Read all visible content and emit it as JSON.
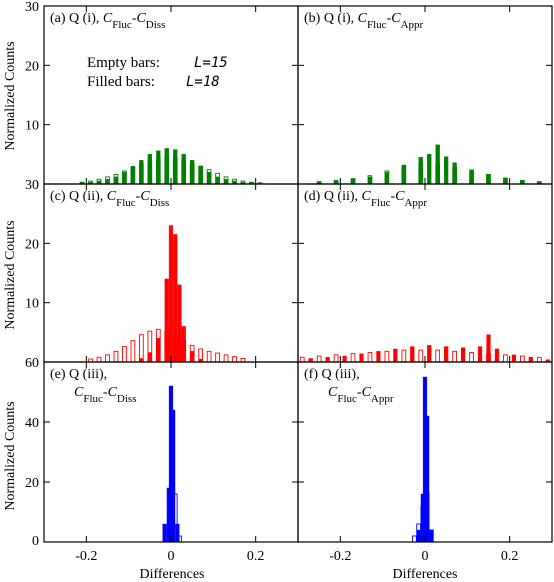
{
  "figure": {
    "y_axis_title": "Normalized Counts",
    "x_axis_title": "Differences",
    "legend": {
      "empty_label": "Empty bars:",
      "empty_value": "L=15",
      "filled_label": "Filled bars:",
      "filled_value": "L=18"
    }
  },
  "chart_data": [
    {
      "type": "bar",
      "panel": "a",
      "label_prefix": "(a)  Q (i), ",
      "c1": "C",
      "s1": "Fluc",
      "c2": "C",
      "s2": "Diss",
      "color": "#008000",
      "xlim": [
        -0.3,
        0.3
      ],
      "ylim": [
        0,
        30
      ],
      "xticks": [
        -0.2,
        0,
        0.2
      ],
      "yticks": [
        10,
        20,
        30
      ],
      "series": [
        {
          "name": "L=15",
          "x": [
            -0.21,
            -0.19,
            -0.17,
            -0.15,
            -0.13,
            -0.11,
            -0.09,
            -0.07,
            -0.05,
            -0.03,
            -0.01,
            0.01,
            0.03,
            0.05,
            0.07,
            0.09,
            0.11,
            0.13,
            0.15,
            0.17,
            0.19,
            0.21
          ],
          "values": [
            0.3,
            0.5,
            0.8,
            1.2,
            1.6,
            2.2,
            2.8,
            3.4,
            3.8,
            4.2,
            4.6,
            4.4,
            4.0,
            3.5,
            3.0,
            2.4,
            1.8,
            1.2,
            0.8,
            0.5,
            0.3,
            0.2
          ]
        },
        {
          "name": "L=18",
          "x": [
            -0.21,
            -0.19,
            -0.17,
            -0.15,
            -0.13,
            -0.11,
            -0.09,
            -0.07,
            -0.05,
            -0.03,
            -0.01,
            0.01,
            0.03,
            0.05,
            0.07,
            0.09,
            0.11,
            0.13,
            0.15,
            0.17,
            0.19,
            0.21
          ],
          "values": [
            0.2,
            0.3,
            0.5,
            0.8,
            1.2,
            2.0,
            3.0,
            4.0,
            5.0,
            5.6,
            6.0,
            5.8,
            5.0,
            4.0,
            3.0,
            2.0,
            1.2,
            0.8,
            0.5,
            0.3,
            0.2,
            0.1
          ]
        }
      ]
    },
    {
      "type": "bar",
      "panel": "b",
      "label_prefix": "(b)  Q (i), ",
      "c1": "C",
      "s1": "Fluc",
      "c2": "C",
      "s2": "Appr",
      "color": "#008000",
      "xlim": [
        -0.3,
        0.3
      ],
      "ylim": [
        0,
        30
      ],
      "xticks": [
        -0.2,
        0,
        0.2
      ],
      "yticks": [
        10,
        20,
        30
      ],
      "series": [
        {
          "name": "L=15",
          "x": [
            -0.25,
            -0.21,
            -0.17,
            -0.13,
            -0.09,
            -0.05,
            -0.01,
            0.03,
            0.07,
            0.11,
            0.15,
            0.19,
            0.23,
            0.27
          ],
          "values": [
            0.4,
            0.6,
            0.9,
            1.4,
            2.2,
            3.0,
            3.6,
            3.4,
            2.8,
            2.2,
            1.6,
            1.0,
            0.6,
            0.4
          ]
        },
        {
          "name": "L=18",
          "x": [
            -0.25,
            -0.21,
            -0.17,
            -0.13,
            -0.09,
            -0.05,
            -0.01,
            0.01,
            0.03,
            0.05,
            0.07,
            0.11,
            0.15,
            0.19,
            0.23,
            0.27
          ],
          "values": [
            0.3,
            0.5,
            0.8,
            1.2,
            2.0,
            3.2,
            4.5,
            5.0,
            6.6,
            4.6,
            3.6,
            2.4,
            1.6,
            1.0,
            0.6,
            0.3
          ]
        }
      ]
    },
    {
      "type": "bar",
      "panel": "c",
      "label_prefix": "(c)  Q (ii), ",
      "c1": "C",
      "s1": "Fluc",
      "c2": "C",
      "s2": "Diss",
      "color": "#ff0000",
      "xlim": [
        -0.3,
        0.3
      ],
      "ylim": [
        0,
        30
      ],
      "xticks": [
        -0.2,
        0,
        0.2
      ],
      "yticks": [
        10,
        20,
        30
      ],
      "series": [
        {
          "name": "L=15",
          "x": [
            -0.19,
            -0.17,
            -0.15,
            -0.13,
            -0.11,
            -0.09,
            -0.07,
            -0.05,
            -0.03,
            -0.01,
            0.01,
            0.03,
            0.05,
            0.07,
            0.09,
            0.11,
            0.13,
            0.15,
            0.17
          ],
          "values": [
            0.5,
            0.8,
            1.2,
            1.8,
            2.6,
            3.6,
            4.6,
            5.2,
            5.5,
            5.2,
            4.4,
            3.6,
            2.8,
            2.2,
            1.8,
            1.5,
            1.2,
            0.9,
            0.6
          ]
        },
        {
          "name": "L=18",
          "x": [
            -0.07,
            -0.05,
            -0.03,
            -0.01,
            0.0,
            0.01,
            0.02,
            0.03,
            0.05,
            0.07
          ],
          "values": [
            0.6,
            1.6,
            4.0,
            14.0,
            23.0,
            21.5,
            13.0,
            6.0,
            1.8,
            0.5
          ]
        }
      ]
    },
    {
      "type": "bar",
      "panel": "d",
      "label_prefix": "(d)  Q (ii), ",
      "c1": "C",
      "s1": "Fluc",
      "c2": "C",
      "s2": "Appr",
      "color": "#ff0000",
      "xlim": [
        -0.3,
        0.3
      ],
      "ylim": [
        0,
        30
      ],
      "xticks": [
        -0.2,
        0,
        0.2
      ],
      "yticks": [
        10,
        20,
        30
      ],
      "series": [
        {
          "name": "L=15",
          "x": [
            -0.29,
            -0.25,
            -0.21,
            -0.17,
            -0.13,
            -0.09,
            -0.05,
            -0.01,
            0.03,
            0.07,
            0.11,
            0.15,
            0.19,
            0.23,
            0.27
          ],
          "values": [
            0.8,
            1.0,
            1.2,
            1.4,
            1.6,
            1.8,
            2.0,
            2.0,
            2.0,
            1.8,
            1.6,
            1.4,
            1.2,
            1.0,
            0.8
          ]
        },
        {
          "name": "L=18",
          "x": [
            -0.27,
            -0.23,
            -0.19,
            -0.15,
            -0.11,
            -0.07,
            -0.03,
            0.01,
            0.05,
            0.09,
            0.13,
            0.15,
            0.17,
            0.21,
            0.25,
            0.29
          ],
          "values": [
            0.6,
            0.8,
            1.0,
            1.4,
            1.8,
            2.2,
            2.6,
            2.8,
            2.6,
            2.4,
            2.6,
            4.6,
            2.2,
            1.2,
            0.8,
            0.4
          ]
        }
      ]
    },
    {
      "type": "bar",
      "panel": "e",
      "label_prefix": "(e)  Q (iii),",
      "c1": "C",
      "s1": "Fluc",
      "c2": "C",
      "s2": "Diss",
      "color": "#0000ff",
      "xlim": [
        -0.3,
        0.3
      ],
      "ylim": [
        0,
        60
      ],
      "xticks": [
        -0.2,
        0,
        0.2
      ],
      "yticks": [
        20,
        40,
        60
      ],
      "series": [
        {
          "name": "L=15",
          "x": [
            -0.01,
            0.0,
            0.01,
            0.02
          ],
          "values": [
            4.0,
            12.0,
            16.0,
            2.0
          ]
        },
        {
          "name": "L=18",
          "x": [
            -0.015,
            -0.005,
            0.0,
            0.005,
            0.015
          ],
          "values": [
            6.0,
            18.0,
            52.0,
            44.0,
            6.0
          ]
        }
      ]
    },
    {
      "type": "bar",
      "panel": "f",
      "label_prefix": "(f)  Q (iii),",
      "c1": "C",
      "s1": "Fluc",
      "c2": "C",
      "s2": "Appr",
      "color": "#0000ff",
      "xlim": [
        -0.3,
        0.3
      ],
      "ylim": [
        0,
        60
      ],
      "xticks": [
        -0.2,
        0,
        0.2
      ],
      "yticks": [
        20,
        40,
        60
      ],
      "series": [
        {
          "name": "L=15",
          "x": [
            -0.025,
            -0.015,
            -0.005,
            0.005,
            0.015
          ],
          "values": [
            2.0,
            6.0,
            12.0,
            16.0,
            4.0
          ]
        },
        {
          "name": "L=18",
          "x": [
            -0.015,
            -0.005,
            0.0,
            0.005,
            0.015
          ],
          "values": [
            4.0,
            16.0,
            55.0,
            42.0,
            4.0
          ]
        }
      ]
    }
  ]
}
